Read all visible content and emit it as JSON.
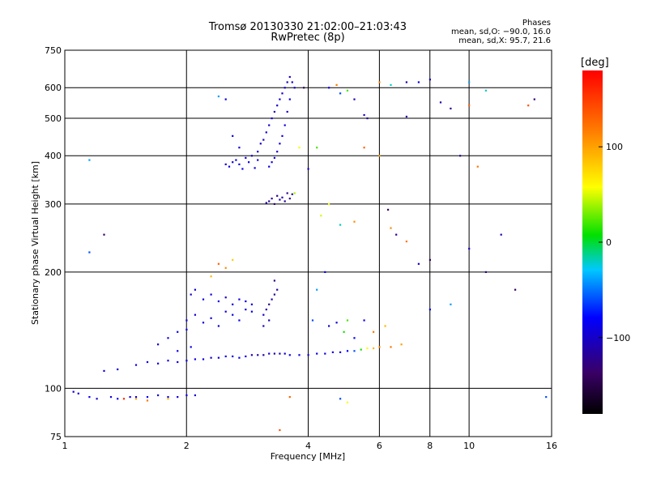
{
  "title": {
    "line1": "Tromsø 20130330 21:02:00–21:03:43",
    "line2": "RwPretec (8p)"
  },
  "stats": {
    "heading": "Phases",
    "line1": "mean, sd,O: −90.0, 16.0",
    "line2": "mean, sd,X: 95.7, 21.6"
  },
  "colorbar": {
    "unit": "[deg]",
    "ticks": [
      {
        "value": 100,
        "label": "100"
      },
      {
        "value": 0,
        "label": "0"
      },
      {
        "value": -100,
        "label": "−100"
      }
    ],
    "range": [
      -180,
      180
    ]
  },
  "chart_data": {
    "type": "scatter",
    "xlabel": "Frequency [MHz]",
    "ylabel": "Stationary phase Virtual Height [km]",
    "xscale": "log",
    "yscale": "log",
    "xlim": [
      1,
      16
    ],
    "ylim": [
      75,
      750
    ],
    "xticks": [
      {
        "value": 1,
        "label": "1"
      },
      {
        "value": 2,
        "label": "2"
      },
      {
        "value": 4,
        "label": "4"
      },
      {
        "value": 6,
        "label": "6"
      },
      {
        "value": 8,
        "label": "8"
      },
      {
        "value": 10,
        "label": "10"
      },
      {
        "value": 16,
        "label": "16"
      }
    ],
    "yticks": [
      {
        "value": 75,
        "label": "75"
      },
      {
        "value": 100,
        "label": "100"
      },
      {
        "value": 200,
        "label": "200"
      },
      {
        "value": 300,
        "label": "300"
      },
      {
        "value": 400,
        "label": "400"
      },
      {
        "value": 500,
        "label": "500"
      },
      {
        "value": 600,
        "label": "600"
      },
      {
        "value": 750,
        "label": "750"
      }
    ],
    "grid": true,
    "color_variable": "phase [deg]",
    "points": [
      [
        1.05,
        98,
        -90
      ],
      [
        1.08,
        97,
        -95
      ],
      [
        1.15,
        95,
        -85
      ],
      [
        1.2,
        94,
        -100
      ],
      [
        1.3,
        95,
        -92
      ],
      [
        1.35,
        94,
        -88
      ],
      [
        1.4,
        94,
        160
      ],
      [
        1.45,
        95,
        -95
      ],
      [
        1.5,
        95,
        -90
      ],
      [
        1.6,
        95,
        -85
      ],
      [
        1.7,
        96,
        -100
      ],
      [
        1.8,
        95,
        -90
      ],
      [
        1.9,
        95,
        -92
      ],
      [
        2.0,
        96,
        -88
      ],
      [
        2.1,
        96,
        -95
      ],
      [
        1.25,
        111,
        -100
      ],
      [
        1.35,
        112,
        -95
      ],
      [
        1.5,
        115,
        -90
      ],
      [
        1.6,
        117,
        -85
      ],
      [
        1.7,
        116,
        -92
      ],
      [
        1.8,
        118,
        -95
      ],
      [
        1.9,
        117,
        -88
      ],
      [
        2.0,
        118,
        -92
      ],
      [
        2.1,
        119,
        -90
      ],
      [
        2.2,
        119,
        -95
      ],
      [
        2.3,
        120,
        -98
      ],
      [
        2.4,
        120,
        -95
      ],
      [
        2.5,
        121,
        -92
      ],
      [
        2.6,
        121,
        -88
      ],
      [
        2.7,
        120,
        -85
      ],
      [
        2.8,
        121,
        -90
      ],
      [
        2.9,
        122,
        -110
      ],
      [
        3.0,
        122,
        -115
      ],
      [
        3.1,
        122,
        -120
      ],
      [
        3.2,
        123,
        -100
      ],
      [
        3.3,
        123,
        -110
      ],
      [
        3.4,
        123,
        -105
      ],
      [
        3.5,
        123,
        -95
      ],
      [
        3.6,
        122,
        -90
      ],
      [
        3.8,
        122,
        -92
      ],
      [
        4.0,
        122,
        -95
      ],
      [
        4.2,
        123,
        -88
      ],
      [
        4.4,
        123,
        -90
      ],
      [
        4.6,
        124,
        -92
      ],
      [
        4.8,
        124,
        -95
      ],
      [
        5.0,
        125,
        -80
      ],
      [
        5.2,
        125,
        -60
      ],
      [
        5.4,
        126,
        10
      ],
      [
        5.6,
        127,
        60
      ],
      [
        5.8,
        127,
        90
      ],
      [
        6.0,
        128,
        110
      ],
      [
        6.4,
        128,
        120
      ],
      [
        6.8,
        130,
        100
      ],
      [
        1.7,
        130,
        -100
      ],
      [
        1.8,
        135,
        -95
      ],
      [
        1.9,
        140,
        -90
      ],
      [
        2.0,
        142,
        -85
      ],
      [
        2.0,
        150,
        -92
      ],
      [
        2.1,
        155,
        -95
      ],
      [
        2.2,
        148,
        -90
      ],
      [
        2.3,
        152,
        -88
      ],
      [
        2.4,
        145,
        -92
      ],
      [
        2.5,
        158,
        -95
      ],
      [
        2.6,
        155,
        -90
      ],
      [
        2.7,
        150,
        -85
      ],
      [
        2.8,
        160,
        -92
      ],
      [
        2.9,
        158,
        -88
      ],
      [
        1.9,
        125,
        -95
      ],
      [
        2.05,
        128,
        -90
      ],
      [
        2.05,
        175,
        -100
      ],
      [
        2.1,
        180,
        -95
      ],
      [
        2.2,
        170,
        -92
      ],
      [
        2.3,
        175,
        -90
      ],
      [
        2.4,
        168,
        -85
      ],
      [
        2.5,
        172,
        -110
      ],
      [
        2.6,
        165,
        -95
      ],
      [
        2.7,
        170,
        -90
      ],
      [
        2.8,
        168,
        -88
      ],
      [
        2.9,
        165,
        -92
      ],
      [
        3.1,
        155,
        -100
      ],
      [
        3.15,
        160,
        -115
      ],
      [
        3.2,
        165,
        -125
      ],
      [
        3.25,
        170,
        -110
      ],
      [
        3.3,
        175,
        -120
      ],
      [
        3.35,
        180,
        -115
      ],
      [
        3.3,
        190,
        -130
      ],
      [
        3.2,
        150,
        -110
      ],
      [
        3.1,
        145,
        -105
      ],
      [
        4.5,
        145,
        -90
      ],
      [
        4.7,
        148,
        -95
      ],
      [
        4.9,
        140,
        10
      ],
      [
        5.0,
        150,
        20
      ],
      [
        5.2,
        135,
        -85
      ],
      [
        5.5,
        150,
        -90
      ],
      [
        5.8,
        140,
        120
      ],
      [
        6.2,
        145,
        90
      ],
      [
        3.2,
        305,
        -120
      ],
      [
        3.25,
        310,
        -115
      ],
      [
        3.3,
        300,
        -125
      ],
      [
        3.35,
        315,
        -120
      ],
      [
        3.4,
        308,
        -110
      ],
      [
        3.45,
        312,
        -118
      ],
      [
        3.5,
        305,
        -115
      ],
      [
        3.55,
        320,
        -120
      ],
      [
        3.6,
        310,
        -125
      ],
      [
        3.65,
        318,
        -115
      ],
      [
        3.15,
        302,
        -110
      ],
      [
        2.5,
        380,
        -100
      ],
      [
        2.55,
        375,
        -95
      ],
      [
        2.6,
        385,
        -92
      ],
      [
        2.65,
        390,
        -90
      ],
      [
        2.7,
        380,
        -88
      ],
      [
        2.8,
        395,
        -92
      ],
      [
        2.9,
        400,
        -95
      ],
      [
        3.0,
        410,
        -98
      ],
      [
        3.05,
        430,
        -100
      ],
      [
        3.1,
        440,
        -105
      ],
      [
        3.15,
        460,
        -95
      ],
      [
        3.2,
        480,
        -100
      ],
      [
        3.25,
        500,
        -95
      ],
      [
        3.3,
        520,
        -105
      ],
      [
        3.35,
        540,
        -100
      ],
      [
        3.4,
        560,
        -95
      ],
      [
        3.45,
        580,
        -100
      ],
      [
        3.5,
        600,
        -98
      ],
      [
        3.55,
        620,
        -100
      ],
      [
        3.6,
        640,
        -105
      ],
      [
        3.65,
        620,
        -95
      ],
      [
        3.7,
        600,
        -100
      ],
      [
        3.6,
        560,
        -90
      ],
      [
        3.55,
        520,
        -95
      ],
      [
        3.5,
        480,
        -92
      ],
      [
        3.45,
        450,
        -88
      ],
      [
        3.4,
        430,
        -95
      ],
      [
        3.35,
        410,
        -100
      ],
      [
        3.3,
        395,
        -92
      ],
      [
        3.25,
        385,
        -95
      ],
      [
        3.2,
        375,
        -90
      ],
      [
        2.7,
        420,
        -95
      ],
      [
        2.6,
        450,
        -90
      ],
      [
        2.75,
        370,
        -88
      ],
      [
        2.85,
        385,
        -85
      ],
      [
        2.95,
        372,
        -92
      ],
      [
        3.0,
        390,
        -95
      ],
      [
        1.15,
        390,
        -40
      ],
      [
        1.25,
        250,
        -140
      ],
      [
        1.15,
        225,
        -60
      ],
      [
        2.4,
        570,
        -40
      ],
      [
        2.5,
        560,
        -90
      ],
      [
        4.0,
        370,
        -100
      ],
      [
        4.2,
        420,
        20
      ],
      [
        4.5,
        600,
        -90
      ],
      [
        4.7,
        610,
        120
      ],
      [
        4.8,
        580,
        -60
      ],
      [
        5.0,
        590,
        20
      ],
      [
        5.2,
        560,
        -110
      ],
      [
        5.5,
        510,
        -100
      ],
      [
        5.6,
        500,
        -120
      ],
      [
        6.0,
        620,
        110
      ],
      [
        6.4,
        610,
        -20
      ],
      [
        7.0,
        620,
        -110
      ],
      [
        7.0,
        505,
        -110
      ],
      [
        7.5,
        620,
        -90
      ],
      [
        8.0,
        630,
        -100
      ],
      [
        8.5,
        550,
        -110
      ],
      [
        9.0,
        530,
        -120
      ],
      [
        10.0,
        540,
        130
      ],
      [
        10.0,
        620,
        -40
      ],
      [
        11.0,
        590,
        -20
      ],
      [
        14.0,
        540,
        140
      ],
      [
        14.5,
        560,
        -130
      ],
      [
        5.5,
        420,
        130
      ],
      [
        6.0,
        400,
        100
      ],
      [
        6.3,
        290,
        -140
      ],
      [
        6.4,
        260,
        110
      ],
      [
        6.6,
        250,
        -120
      ],
      [
        7.0,
        240,
        120
      ],
      [
        7.5,
        210,
        -100
      ],
      [
        8.0,
        215,
        -140
      ],
      [
        8.0,
        160,
        -80
      ],
      [
        9.0,
        165,
        -40
      ],
      [
        9.5,
        400,
        -120
      ],
      [
        10.0,
        230,
        -100
      ],
      [
        10.5,
        375,
        120
      ],
      [
        11.0,
        200,
        -120
      ],
      [
        12.0,
        250,
        -110
      ],
      [
        13.0,
        180,
        -140
      ],
      [
        15.5,
        95,
        -60
      ],
      [
        4.3,
        280,
        50
      ],
      [
        4.5,
        300,
        60
      ],
      [
        4.8,
        265,
        -20
      ],
      [
        5.2,
        270,
        110
      ],
      [
        4.4,
        200,
        -80
      ],
      [
        4.2,
        180,
        -40
      ],
      [
        4.1,
        150,
        -60
      ],
      [
        3.7,
        320,
        40
      ],
      [
        3.8,
        420,
        60
      ],
      [
        3.9,
        600,
        -140
      ],
      [
        2.4,
        210,
        130
      ],
      [
        2.5,
        205,
        110
      ],
      [
        2.6,
        215,
        80
      ],
      [
        2.3,
        195,
        90
      ],
      [
        1.5,
        94,
        100
      ],
      [
        1.6,
        93,
        120
      ],
      [
        1.8,
        94,
        90
      ],
      [
        3.4,
        78,
        140
      ],
      [
        3.6,
        95,
        130
      ],
      [
        4.8,
        94,
        -60
      ],
      [
        5.0,
        92,
        60
      ]
    ]
  }
}
